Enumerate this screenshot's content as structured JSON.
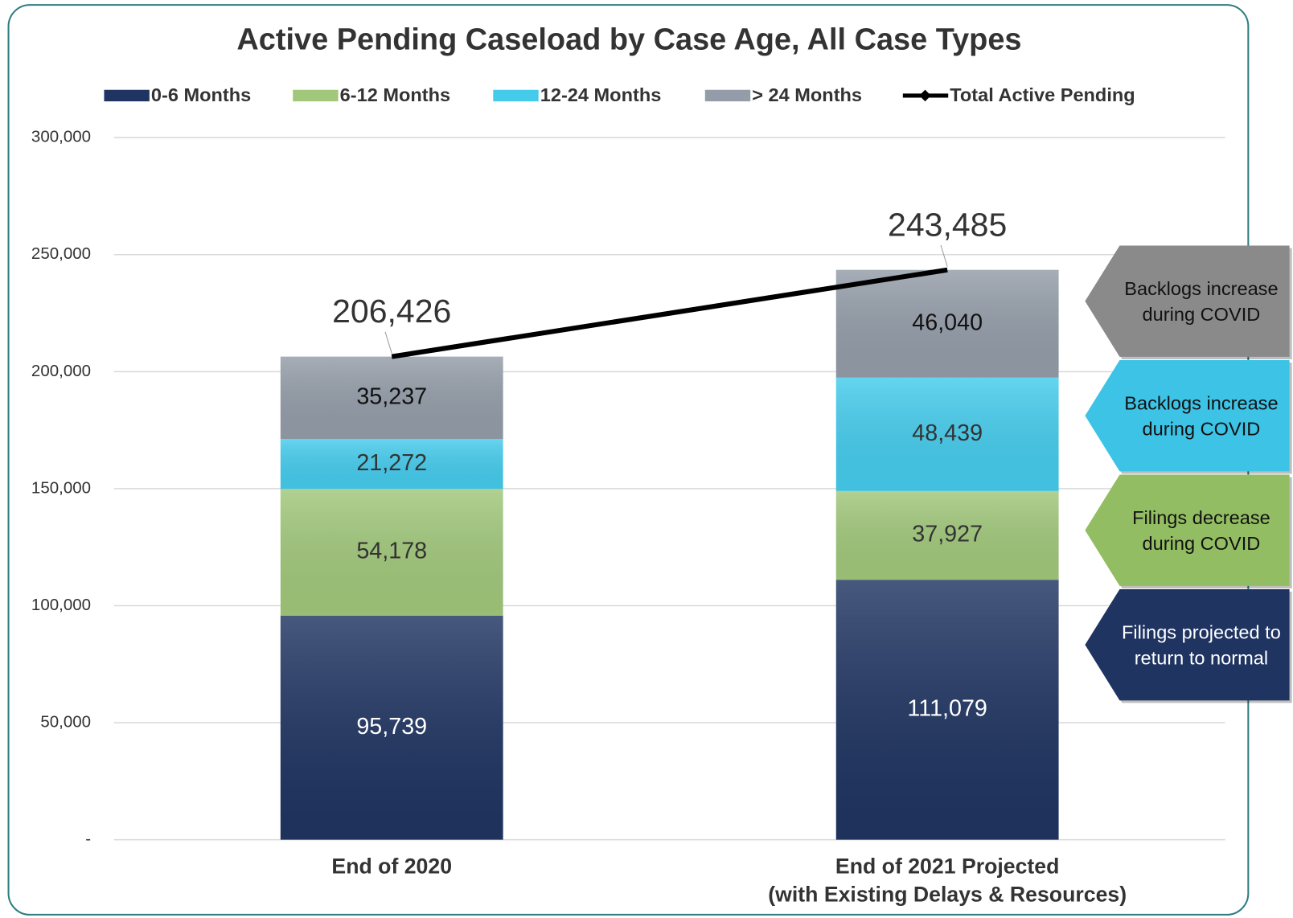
{
  "chart_data": {
    "type": "bar",
    "stacked": true,
    "title": "Active Pending Caseload by Case Age, All Case Types",
    "categories": [
      "End of 2020",
      "End of 2021 Projected\n(with Existing Delays & Resources)"
    ],
    "series": [
      {
        "name": "0-6 Months",
        "color": "#1f3461",
        "values": [
          95739,
          111079
        ],
        "value_labels": [
          "95,739",
          "111,079"
        ]
      },
      {
        "name": "6-12 Months",
        "color": "#a0c77a",
        "values": [
          54178,
          37927
        ],
        "value_labels": [
          "54,178",
          "37,927"
        ]
      },
      {
        "name": "12-24 Months",
        "color": "#44cbec",
        "values": [
          21272,
          48439
        ],
        "value_labels": [
          "21,272",
          "48,439"
        ]
      },
      {
        "name": "> 24 Months",
        "color": "#939ca8",
        "values": [
          35237,
          46040
        ],
        "value_labels": [
          "35,237",
          "46,040"
        ]
      },
      {
        "name": "Total Active Pending",
        "type": "line",
        "color": "#000000",
        "values": [
          206426,
          243485
        ],
        "value_labels": [
          "206,426",
          "243,485"
        ]
      }
    ],
    "ylim": [
      0,
      300000
    ],
    "yticks": [
      {
        "value": 0,
        "label": "-"
      },
      {
        "value": 50000,
        "label": "50,000"
      },
      {
        "value": 100000,
        "label": "100,000"
      },
      {
        "value": 150000,
        "label": "150,000"
      },
      {
        "value": 200000,
        "label": "200,000"
      },
      {
        "value": 250000,
        "label": "250,000"
      },
      {
        "value": 300000,
        "label": "300,000"
      }
    ],
    "grid": true,
    "legend": "top",
    "annotations": [
      {
        "text": "Backlogs increase during COVID",
        "color": "#8a8a8a"
      },
      {
        "text": "Backlogs increase during COVID",
        "color": "#3cc3e6"
      },
      {
        "text": "Filings decrease during COVID",
        "color": "#92bd62"
      },
      {
        "text": "Filings projected to return to normal",
        "color": "#1f3461"
      }
    ]
  }
}
